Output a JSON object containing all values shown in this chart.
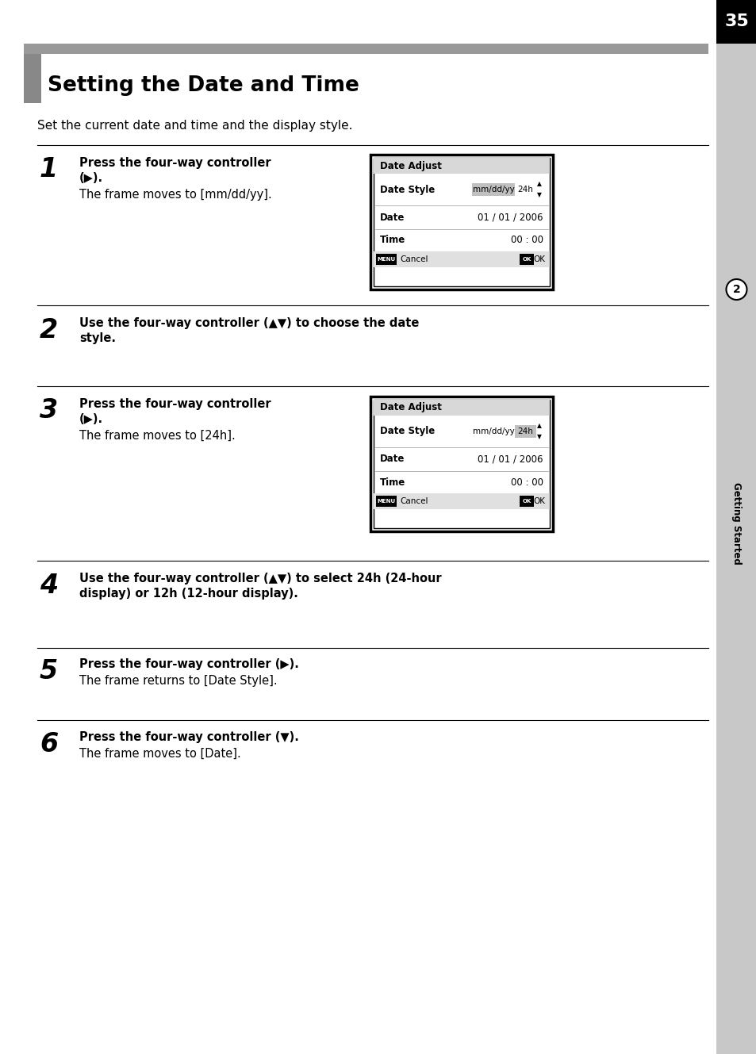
{
  "page_number": "35",
  "title": "Setting the Date and Time",
  "intro_text": "Set the current date and time and the display style.",
  "bg_color": "#ffffff",
  "sidebar_color": "#c8c8c8",
  "header_bar_color": "#999999",
  "title_bar_left_color": "#888888",
  "steps": [
    {
      "number": "1",
      "bold_lines": [
        "Press the four-way controller",
        "(▶)."
      ],
      "normal_text": "The frame moves to [mm/dd/yy].",
      "has_dialog": true,
      "dialog_index": 0
    },
    {
      "number": "2",
      "bold_lines": [
        "Use the four-way controller (▲▼) to choose the date",
        "style."
      ],
      "normal_text": "",
      "has_dialog": false,
      "dialog_index": -1
    },
    {
      "number": "3",
      "bold_lines": [
        "Press the four-way controller",
        "(▶)."
      ],
      "normal_text": "The frame moves to [24h].",
      "has_dialog": true,
      "dialog_index": 1
    },
    {
      "number": "4",
      "bold_lines": [
        "Use the four-way controller (▲▼) to select 24h (24-hour",
        "display) or 12h (12-hour display)."
      ],
      "normal_text": "",
      "has_dialog": false,
      "dialog_index": -1
    },
    {
      "number": "5",
      "bold_lines": [
        "Press the four-way controller (▶)."
      ],
      "normal_text": "The frame returns to [Date Style].",
      "has_dialog": false,
      "dialog_index": -1
    },
    {
      "number": "6",
      "bold_lines": [
        "Press the four-way controller (▼)."
      ],
      "normal_text": "The frame moves to [Date].",
      "has_dialog": false,
      "dialog_index": -1
    }
  ],
  "dialogs": [
    {
      "title": "Date Adjust",
      "date_style_mm": "mm/dd/yy",
      "date_style_24h": "24h",
      "highlight": "mm",
      "date_val": "01 / 01 / 2006",
      "time_val": "00 : 00"
    },
    {
      "title": "Date Adjust",
      "date_style_mm": "mm/dd/yy",
      "date_style_24h": "24h",
      "highlight": "24h",
      "date_val": "01 / 01 / 2006",
      "time_val": "00 : 00"
    }
  ],
  "side_label": "Getting Started",
  "side_number": "2"
}
